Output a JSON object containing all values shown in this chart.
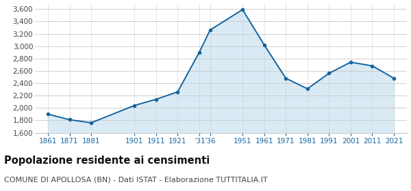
{
  "years": [
    1861,
    1871,
    1881,
    1901,
    1911,
    1921,
    1931,
    1936,
    1951,
    1961,
    1971,
    1981,
    1991,
    2001,
    2011,
    2021
  ],
  "population": [
    1901,
    1811,
    1761,
    2041,
    2141,
    2261,
    2901,
    3261,
    3591,
    3021,
    2481,
    2311,
    2561,
    2741,
    2681,
    2481
  ],
  "ylim": [
    1600,
    3700
  ],
  "yticks": [
    1600,
    1800,
    2000,
    2200,
    2400,
    2600,
    2800,
    3000,
    3200,
    3400,
    3600
  ],
  "xtick_positions": [
    1861,
    1871,
    1881,
    1901,
    1911,
    1921,
    1931,
    1936,
    1951,
    1961,
    1971,
    1981,
    1991,
    2001,
    2011,
    2021
  ],
  "xtick_labels": [
    "1861",
    "1871",
    "1881",
    "1901",
    "1911",
    "1921",
    "’31",
    "’36",
    "1951",
    "1961",
    "1971",
    "1981",
    "1991",
    "2001",
    "2011",
    "2021"
  ],
  "line_color": "#1464a0",
  "fill_color": "#daeaf5",
  "marker_color": "#1464a0",
  "bg_color": "#ffffff",
  "grid_color": "#c8c8c8",
  "tick_color": "#1464a0",
  "title": "Popolazione residente ai censimenti",
  "subtitle": "COMUNE DI APOLLOSA (BN) - Dati ISTAT - Elaborazione TUTTITALIA.IT",
  "title_fontsize": 10.5,
  "subtitle_fontsize": 8,
  "xlim_left": 1855,
  "xlim_right": 2027
}
